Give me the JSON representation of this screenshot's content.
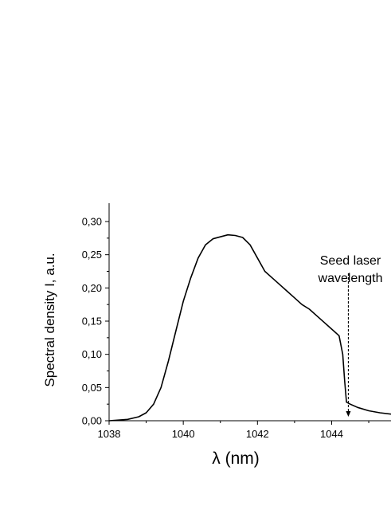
{
  "chart_data": {
    "type": "line",
    "title": "",
    "xlabel": "λ (nm)",
    "ylabel": "Spectral density I, a.u.",
    "xlim": [
      1038,
      1045.6
    ],
    "ylim": [
      0,
      0.31
    ],
    "x_ticks": [
      1038,
      1040,
      1042,
      1044
    ],
    "x_tick_labels": [
      "1038",
      "1040",
      "1042",
      "1044"
    ],
    "y_ticks": [
      0,
      0.05,
      0.1,
      0.15,
      0.2,
      0.25,
      0.3
    ],
    "y_tick_labels": [
      "0,00",
      "0,05",
      "0,10",
      "0,15",
      "0,20",
      "0,25",
      "0,30"
    ],
    "grid": false,
    "series": [
      {
        "color": "#000000",
        "x": [
          1038.0,
          1038.5,
          1038.8,
          1039.0,
          1039.2,
          1039.4,
          1039.6,
          1039.8,
          1040.0,
          1040.2,
          1040.4,
          1040.6,
          1040.8,
          1041.0,
          1041.2,
          1041.4,
          1041.6,
          1041.8,
          1042.0,
          1042.2,
          1042.4,
          1042.6,
          1042.8,
          1043.0,
          1043.2,
          1043.4,
          1043.6,
          1043.8,
          1044.0,
          1044.2,
          1044.3,
          1044.35,
          1044.4,
          1044.5,
          1044.7,
          1045.0,
          1045.3,
          1045.6
        ],
        "y": [
          0.0,
          0.002,
          0.006,
          0.012,
          0.025,
          0.05,
          0.09,
          0.135,
          0.18,
          0.215,
          0.245,
          0.265,
          0.274,
          0.277,
          0.28,
          0.279,
          0.276,
          0.265,
          0.245,
          0.225,
          0.215,
          0.205,
          0.195,
          0.185,
          0.175,
          0.168,
          0.158,
          0.148,
          0.138,
          0.128,
          0.1,
          0.06,
          0.028,
          0.025,
          0.02,
          0.015,
          0.012,
          0.01
        ]
      }
    ],
    "annotations": [
      {
        "lines": [
          "Seed laser",
          "wavelength"
        ],
        "x": 1044.45,
        "y_from": 0.222,
        "y_to": 0.006,
        "style": "dashed-arrow"
      }
    ]
  }
}
